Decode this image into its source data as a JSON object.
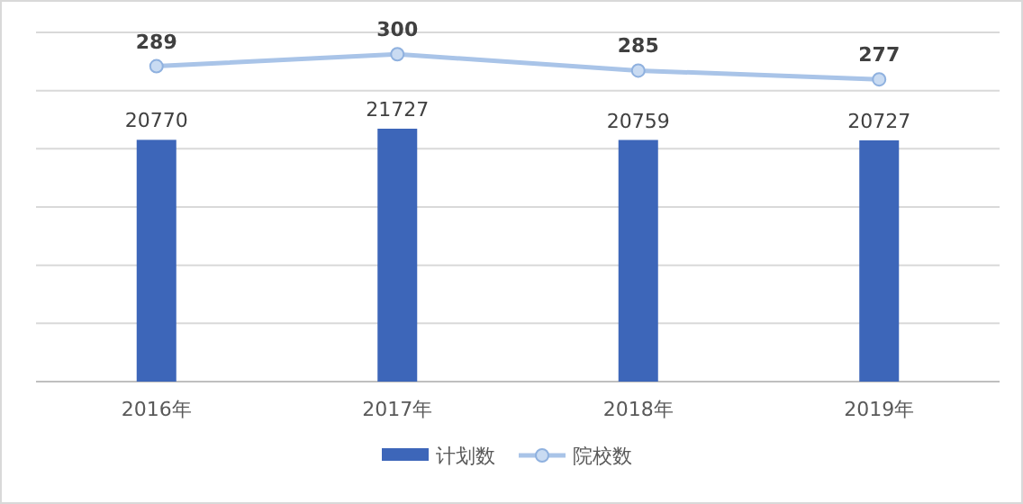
{
  "chart_data": {
    "type": "bar",
    "categories": [
      "2016年",
      "2017年",
      "2018年",
      "2019年"
    ],
    "series": [
      {
        "name": "计划数",
        "color": "#3d66b9",
        "values": [
          20770,
          21727,
          20759,
          20727
        ]
      },
      {
        "name": "院校数",
        "type": "line",
        "axis": "y2",
        "color": "#a9c4e8",
        "values": [
          289,
          300,
          285,
          277
        ]
      }
    ],
    "ylim": [
      0,
      30000
    ],
    "yticks": [
      {
        "value": 0,
        "label": null
      },
      {
        "value": 5000,
        "label": null
      },
      {
        "value": 10000,
        "label": null
      },
      {
        "value": 15000,
        "label": null
      },
      {
        "value": 20000,
        "label": null
      },
      {
        "value": 25000,
        "label": null
      },
      {
        "value": 30000,
        "label": null
      }
    ],
    "y2lim": [
      0,
      320
    ],
    "grid": "y",
    "legend": "bottom",
    "marker": "circle",
    "data_labels": true
  }
}
